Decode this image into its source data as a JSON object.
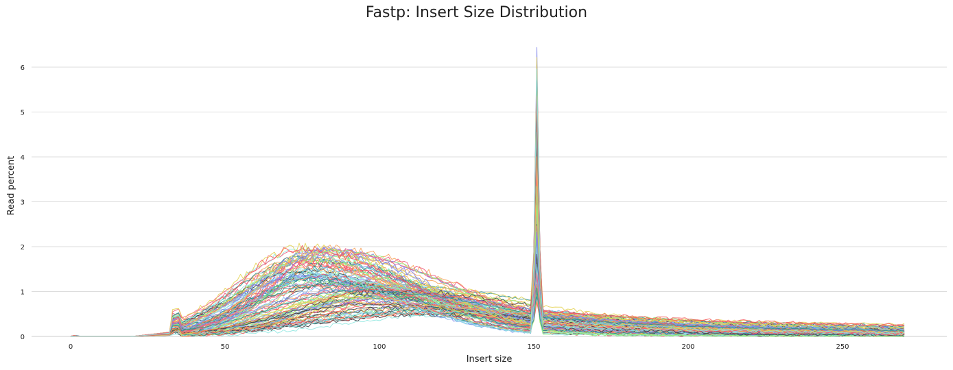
{
  "chart_data": {
    "type": "line",
    "title": "Fastp: Insert Size Distribution",
    "xlabel": "Insert size",
    "ylabel": "Read percent",
    "xlim": [
      -10,
      275
    ],
    "ylim": [
      0,
      6.7
    ],
    "xticks": [
      0,
      50,
      100,
      150,
      200,
      250
    ],
    "yticks": [
      0,
      1,
      2,
      3,
      4,
      5,
      6
    ],
    "grid": "horizontal",
    "legend": "none",
    "sample_count_estimate": 120,
    "palette": [
      "#7cb5ec",
      "#434348",
      "#90ed7d",
      "#f7a35c",
      "#8085e9",
      "#f15c80",
      "#e4d354",
      "#2b908f",
      "#f45b5b",
      "#91e8e1"
    ],
    "x_range_of_series": [
      0,
      270
    ],
    "representative_series": [
      {
        "x": [
          0,
          20,
          33,
          40,
          50,
          60,
          70,
          76,
          85,
          100,
          120,
          140,
          148,
          151,
          155,
          170,
          200,
          230,
          270
        ],
        "y": [
          0,
          0.03,
          0.3,
          0.55,
          0.95,
          1.4,
          1.85,
          2.02,
          1.8,
          1.4,
          0.95,
          0.6,
          0.5,
          1.6,
          0.2,
          0.08,
          0.03,
          0.02,
          0.01
        ]
      },
      {
        "x": [
          0,
          20,
          33,
          40,
          50,
          60,
          70,
          78,
          85,
          100,
          120,
          140,
          148,
          151,
          155,
          170,
          200,
          230,
          270
        ],
        "y": [
          0,
          0.02,
          0.25,
          0.45,
          0.8,
          1.2,
          1.6,
          1.75,
          1.65,
          1.3,
          0.95,
          0.65,
          0.55,
          6.45,
          0.5,
          0.6,
          0.45,
          0.35,
          0.2
        ]
      },
      {
        "x": [
          0,
          20,
          33,
          40,
          50,
          60,
          70,
          80,
          90,
          100,
          120,
          140,
          148,
          151,
          155,
          170,
          200,
          230,
          270
        ],
        "y": [
          0,
          0.01,
          0.15,
          0.25,
          0.4,
          0.55,
          0.7,
          0.8,
          0.85,
          0.85,
          0.75,
          0.6,
          0.55,
          5.2,
          0.55,
          0.7,
          0.5,
          0.35,
          0.2
        ]
      },
      {
        "x": [
          0,
          20,
          33,
          40,
          50,
          60,
          70,
          80,
          90,
          100,
          110,
          120,
          140,
          148,
          151,
          155,
          170,
          200,
          230,
          270
        ],
        "y": [
          0,
          0.01,
          0.05,
          0.1,
          0.15,
          0.2,
          0.3,
          0.38,
          0.45,
          0.52,
          0.58,
          0.6,
          0.6,
          0.55,
          2.5,
          0.35,
          0.4,
          0.35,
          0.25,
          0.15
        ]
      },
      {
        "x": [
          0,
          20,
          33,
          40,
          50,
          60,
          70,
          80,
          90,
          100,
          110,
          120,
          140,
          148,
          151,
          155,
          170,
          200,
          230,
          270
        ],
        "y": [
          0,
          0.01,
          0.06,
          0.1,
          0.15,
          0.2,
          0.25,
          0.3,
          0.35,
          0.4,
          0.45,
          0.52,
          0.55,
          0.5,
          4.4,
          0.3,
          0.08,
          0.03,
          0.02,
          0.01
        ]
      }
    ]
  }
}
